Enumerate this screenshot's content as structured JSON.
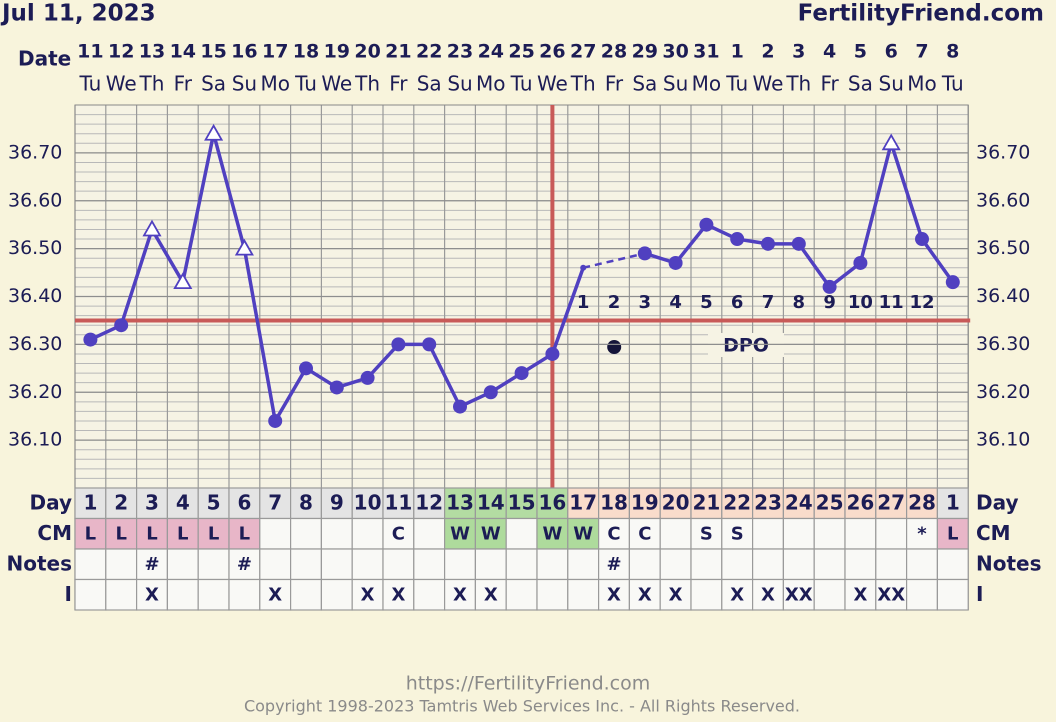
{
  "chart_data": {
    "type": "line",
    "date": "Jul 11, 2023",
    "site": "FertilityFriend.com",
    "x_label": "Date",
    "categories": [
      "11",
      "12",
      "13",
      "14",
      "15",
      "16",
      "17",
      "18",
      "19",
      "20",
      "21",
      "22",
      "23",
      "24",
      "25",
      "26",
      "27",
      "28",
      "29",
      "30",
      "31",
      "1",
      "2",
      "3",
      "4",
      "5",
      "6",
      "7",
      "8"
    ],
    "weekdays": [
      "Tu",
      "We",
      "Th",
      "Fr",
      "Sa",
      "Su",
      "Mo",
      "Tu",
      "We",
      "Th",
      "Fr",
      "Sa",
      "Su",
      "Mo",
      "Tu",
      "We",
      "Th",
      "Fr",
      "Sa",
      "Su",
      "Mo",
      "Tu",
      "We",
      "Th",
      "Fr",
      "Sa",
      "Su",
      "Mo",
      "Tu"
    ],
    "values": [
      36.31,
      36.34,
      36.54,
      36.43,
      36.74,
      36.5,
      36.14,
      36.25,
      36.21,
      36.23,
      36.3,
      36.3,
      36.17,
      36.2,
      36.24,
      36.28,
      36.46,
      null,
      36.49,
      36.47,
      36.55,
      36.52,
      36.51,
      36.51,
      36.42,
      36.47,
      36.72,
      36.52,
      36.43
    ],
    "markers": [
      "circle",
      "circle",
      "triangle",
      "triangle",
      "triangle",
      "triangle",
      "circle",
      "circle",
      "circle",
      "circle",
      "circle",
      "circle",
      "circle",
      "circle",
      "circle",
      "circle",
      "dot",
      null,
      "circle",
      "circle",
      "circle",
      "circle",
      "circle",
      "circle",
      "circle",
      "circle",
      "triangle",
      "circle",
      "circle"
    ],
    "color": "#5040c0",
    "ylim": [
      36.0,
      36.8
    ],
    "yticks": [
      {
        "value": 36.1,
        "label": "36.10"
      },
      {
        "value": 36.2,
        "label": "36.20"
      },
      {
        "value": 36.3,
        "label": "36.30"
      },
      {
        "value": 36.4,
        "label": "36.40"
      },
      {
        "value": 36.5,
        "label": "36.50"
      },
      {
        "value": 36.6,
        "label": "36.60"
      },
      {
        "value": 36.7,
        "label": "36.70"
      }
    ],
    "grid": true,
    "coverline": 36.35,
    "coverline_color": "#c85a58",
    "ovulation_day": 16,
    "dpo": [
      null,
      null,
      null,
      null,
      null,
      null,
      null,
      null,
      null,
      null,
      null,
      null,
      null,
      null,
      null,
      null,
      1,
      2,
      3,
      4,
      5,
      6,
      7,
      8,
      9,
      10,
      11,
      12,
      null
    ],
    "dpo_label": "DPO",
    "day_label": "Day",
    "cm_label": "CM",
    "notes_label": "Notes",
    "i_label": "I",
    "cycle_days": [
      1,
      2,
      3,
      4,
      5,
      6,
      7,
      8,
      9,
      10,
      11,
      12,
      13,
      14,
      15,
      16,
      17,
      18,
      19,
      20,
      21,
      22,
      23,
      24,
      25,
      26,
      27,
      28,
      1
    ],
    "day_colors": [
      "#e4e4e4",
      "#e4e4e4",
      "#e4e4e4",
      "#e4e4e4",
      "#e4e4e4",
      "#e4e4e4",
      "#e4e4e4",
      "#e4e4e4",
      "#e4e4e4",
      "#e4e4e4",
      "#e4e4e4",
      "#e4e4e4",
      "#b3dca2",
      "#b3dca2",
      "#b3dca2",
      "#b3dca2",
      "#f9dccb",
      "#f9dccb",
      "#f9dccb",
      "#f9dccb",
      "#f9dccb",
      "#f9dccb",
      "#f9dccb",
      "#f9dccb",
      "#f9dccb",
      "#f9dccb",
      "#f9dccb",
      "#f9dccb",
      "#e4e4e4"
    ],
    "cm": [
      "L",
      "L",
      "L",
      "L",
      "L",
      "L",
      null,
      null,
      null,
      null,
      "C",
      null,
      "W",
      "W",
      null,
      "W",
      "W",
      "C",
      "C",
      null,
      "S",
      "S",
      null,
      null,
      null,
      null,
      null,
      "*",
      "L"
    ],
    "cm_colors": {
      "L": "#e8b6c8",
      "W": "#aedb9c"
    },
    "notes": [
      null,
      null,
      "#",
      null,
      null,
      "#",
      null,
      null,
      null,
      null,
      null,
      null,
      null,
      null,
      null,
      null,
      null,
      "#",
      null,
      null,
      null,
      null,
      null,
      null,
      null,
      null,
      null,
      null,
      null
    ],
    "intercourse": [
      null,
      null,
      "X",
      null,
      null,
      null,
      "X",
      null,
      null,
      "X",
      "X",
      null,
      "X",
      "X",
      null,
      null,
      null,
      "X",
      "X",
      "X",
      null,
      "X",
      "X",
      "XX",
      null,
      "X",
      "XX",
      null,
      null
    ]
  },
  "footer": {
    "url": "https://FertilityFriend.com",
    "copyright": "Copyright 1998-2023 Tamtris Web Services Inc. - All Rights Reserved."
  }
}
